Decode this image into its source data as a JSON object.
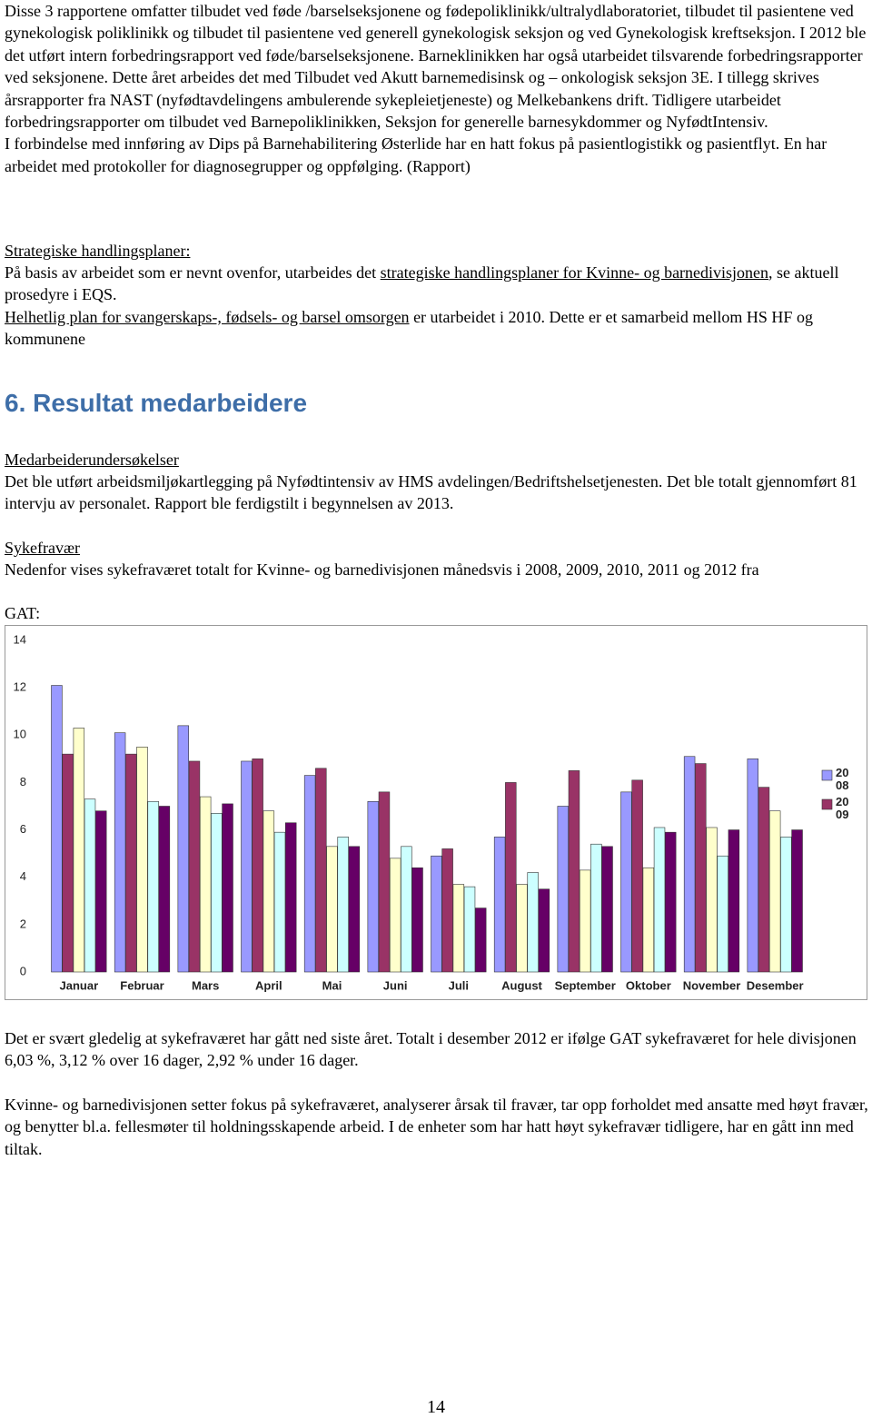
{
  "body": {
    "intro": [
      "Disse 3 rapportene omfatter tilbudet ved føde /barselseksjonene og fødepoliklinikk/ultralydlaboratoriet, tilbudet til pasientene ved gynekologisk poliklinikk og tilbudet til pasientene ved generell gynekologisk seksjon og ved Gynekologisk kreftseksjon. I 2012 ble det utført intern forbedringsrapport ved føde/barselseksjonene. Barneklinikken har også utarbeidet tilsvarende forbedringsrapporter ved seksjonene. Dette året arbeides det med Tilbudet ved Akutt barnemedisinsk og – onkologisk seksjon 3E. I tillegg skrives årsrapporter fra NAST (nyfødtavdelingens ambulerende sykepleietjeneste) og Melkebankens drift. Tidligere utarbeidet forbedringsrapporter om tilbudet ved Barnepoliklinikken, Seksjon for generelle barnesykdommer og NyfødtIntensiv.",
      "I forbindelse med innføring av Dips på Barnehabilitering Østerlide har en hatt fokus på pasientlogistikk og pasientflyt. En har arbeidet med protokoller for diagnosegrupper og oppfølging. (Rapport)"
    ],
    "strategy": {
      "heading": "Strategiske handlingsplaner:",
      "p1": [
        "På basis av arbeidet som er nevnt ovenfor, utarbeides det ",
        "strategiske handlingsplaner for Kvinne- og barnedivisjonen",
        ", se aktuell prosedyre i EQS."
      ],
      "p2": [
        "Helhetlig plan for svangerskaps-, fødsels- og barsel omsorgen",
        " er utarbeidet i 2010. Dette er et samarbeid mellom HS HF og kommunene"
      ]
    },
    "section_title": "6. Resultat medarbeidere",
    "survey": {
      "heading": "Medarbeiderundersøkelser",
      "text": "Det ble utført arbeidsmiljøkartlegging på Nyfødtintensiv av HMS avdelingen/Bedriftshelsetjenesten. Det ble totalt gjennomført 81 intervju av personalet. Rapport ble ferdigstilt i begynnelsen av 2013."
    },
    "sick_leave": {
      "heading": "Sykefravær",
      "text": "Nedenfor vises sykefraværet totalt for Kvinne- og barnedivisjonen månedsvis i 2008, 2009, 2010, 2011 og 2012 fra",
      "source": "GAT:"
    },
    "after": [
      "Det er svært gledelig at sykefraværet har gått ned siste året. Totalt i desember 2012 er ifølge GAT sykefraværet for hele divisjonen 6,03 %, 3,12 % over 16 dager, 2,92 % under 16 dager.",
      "Kvinne- og barnedivisjonen setter fokus på sykefraværet, analyserer årsak til fravær, tar opp forholdet med ansatte med høyt fravær, og benytter bl.a. fellesmøter til holdningsskapende arbeid. I de enheter som har hatt høyt sykefravær tidligere, har en gått inn med tiltak."
    ],
    "page_number": "14"
  },
  "chart_data": {
    "type": "bar",
    "categories": [
      "Januar",
      "Februar",
      "Mars",
      "April",
      "Mai",
      "Juni",
      "Juli",
      "August",
      "September",
      "Oktober",
      "November",
      "Desember"
    ],
    "series": [
      {
        "name": "2008",
        "color": "#9999ff",
        "values": [
          12.1,
          10.1,
          10.4,
          8.9,
          8.3,
          7.2,
          4.9,
          5.7,
          7.0,
          7.6,
          9.1,
          9.0
        ]
      },
      {
        "name": "2009",
        "color": "#993366",
        "values": [
          9.2,
          9.2,
          8.9,
          9.0,
          8.6,
          7.6,
          5.2,
          8.0,
          8.5,
          8.1,
          8.8,
          7.8
        ]
      },
      {
        "color": "#ffffcc",
        "values": [
          10.3,
          9.5,
          7.4,
          6.8,
          5.3,
          4.8,
          3.7,
          3.7,
          4.3,
          4.4,
          6.1,
          6.8
        ]
      },
      {
        "color": "#ccffff",
        "values": [
          7.3,
          7.2,
          6.7,
          5.9,
          5.7,
          5.3,
          3.6,
          4.2,
          5.4,
          6.1,
          4.9,
          5.7
        ]
      },
      {
        "color": "#660066",
        "values": [
          6.8,
          7.0,
          7.1,
          6.3,
          5.3,
          4.4,
          2.7,
          3.5,
          5.3,
          5.9,
          6.0,
          6.0
        ]
      }
    ],
    "ylim": [
      0,
      14
    ],
    "yticks": [
      0,
      2,
      4,
      6,
      8,
      10,
      12,
      14
    ],
    "grid": false,
    "legend": "right"
  }
}
